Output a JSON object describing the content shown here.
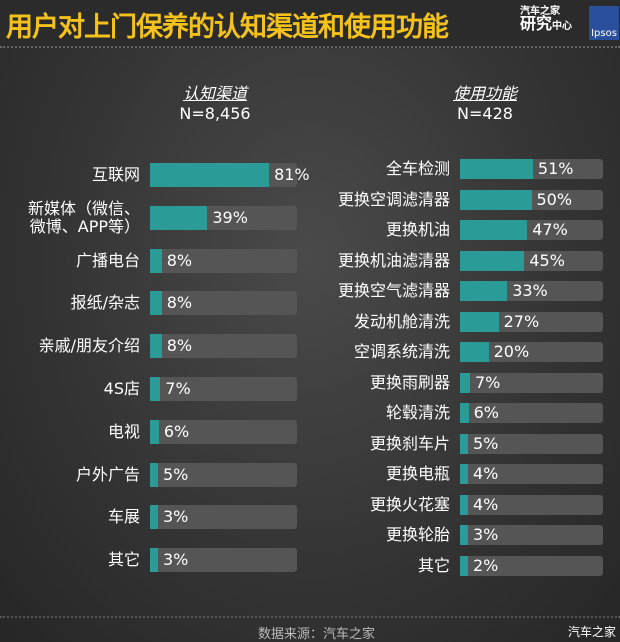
{
  "header": {
    "title": "用户对上门保养的认知渠道和使用功能",
    "logo_top": "汽车之家",
    "logo_big": "研究",
    "logo_small": "中心",
    "logo_ipsos": "Ipsos"
  },
  "footer": {
    "source": "数据来源：汽车之家",
    "watermark": "汽车之家"
  },
  "colors": {
    "bar": "#2b9b98",
    "track": "#555555",
    "title": "#f5c21b"
  },
  "chart_data": [
    {
      "type": "bar",
      "title": "认知渠道",
      "subtitle": "N=8,456",
      "unit": "%",
      "xlim": [
        0,
        100
      ],
      "categories": [
        "互联网",
        "新媒体（微信、\n微博、APP等）",
        "广播电台",
        "报纸/杂志",
        "亲戚/朋友介绍",
        "4S店",
        "电视",
        "户外广告",
        "车展",
        "其它"
      ],
      "values": [
        81,
        39,
        8,
        8,
        8,
        7,
        6,
        5,
        3,
        3
      ],
      "labels": [
        "81%",
        "39%",
        "8%",
        "8%",
        "8%",
        "7%",
        "6%",
        "5%",
        "3%",
        "3%"
      ]
    },
    {
      "type": "bar",
      "title": "使用功能",
      "subtitle": "N=428",
      "unit": "%",
      "xlim": [
        0,
        100
      ],
      "categories": [
        "全车检测",
        "更换空调滤清器",
        "更换机油",
        "更换机油滤清器",
        "更换空气滤清器",
        "发动机舱清洗",
        "空调系统清洗",
        "更换雨刷器",
        "轮毂清洗",
        "更换刹车片",
        "更换电瓶",
        "更换火花塞",
        "更换轮胎",
        "其它"
      ],
      "values": [
        51,
        50,
        47,
        45,
        33,
        27,
        20,
        7,
        6,
        5,
        4,
        4,
        3,
        2
      ],
      "labels": [
        "51%",
        "50%",
        "47%",
        "45%",
        "33%",
        "27%",
        "20%",
        "7%",
        "6%",
        "5%",
        "4%",
        "4%",
        "3%",
        "2%"
      ]
    }
  ]
}
